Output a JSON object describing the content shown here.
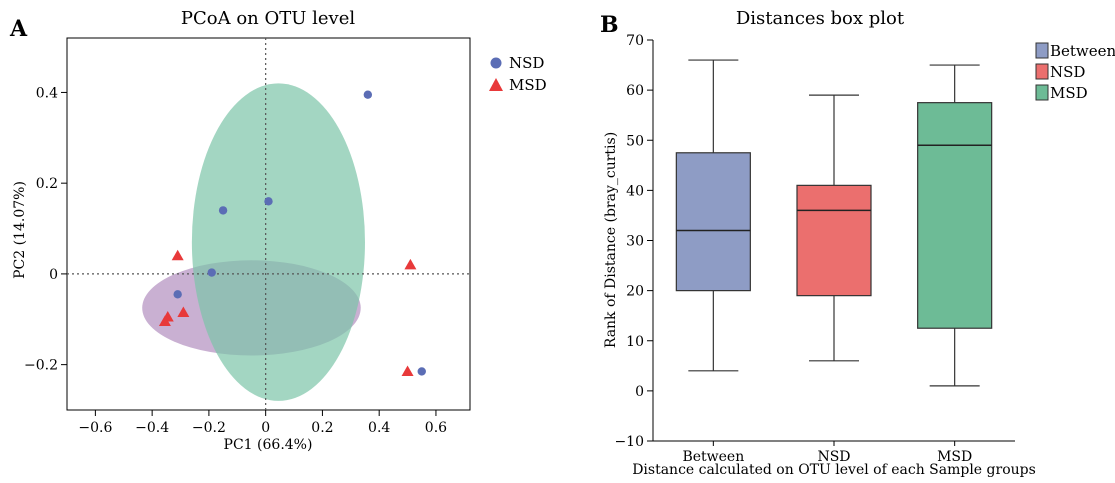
{
  "panels": {
    "a_label": "A",
    "b_label": "B"
  },
  "chart_data": [
    {
      "type": "scatter",
      "title": "PCoA on OTU level",
      "xlabel": "PC1 (66.4%)",
      "ylabel": "PC2 (14.07%)",
      "xlim": [
        -0.7,
        0.72
      ],
      "ylim": [
        -0.3,
        0.52
      ],
      "xticks": [
        -0.6,
        -0.4,
        -0.2,
        0,
        0.2,
        0.4,
        0.6
      ],
      "xtick_labels": [
        "−0.6",
        "−0.4",
        "−0.2",
        "0",
        "0.2",
        "0.4",
        "0.6"
      ],
      "yticks": [
        -0.2,
        0,
        0.2,
        0.4
      ],
      "ytick_labels": [
        "−0.2",
        "0",
        "0.2",
        "0.4"
      ],
      "grid": false,
      "reference_lines": {
        "x": 0,
        "y": 0,
        "style": "dotted"
      },
      "legend_position": "right",
      "series": [
        {
          "name": "NSD",
          "marker": "circle",
          "color": "#5b6db5",
          "points": [
            [
              0.36,
              0.395
            ],
            [
              -0.15,
              0.14
            ],
            [
              0.01,
              0.16
            ],
            [
              -0.19,
              0.003
            ],
            [
              -0.31,
              -0.045
            ],
            [
              0.55,
              -0.215
            ]
          ]
        },
        {
          "name": "MSD",
          "marker": "triangle",
          "color": "#e8393a",
          "points": [
            [
              -0.31,
              0.04
            ],
            [
              -0.345,
              -0.095
            ],
            [
              -0.355,
              -0.105
            ],
            [
              -0.29,
              -0.085
            ],
            [
              0.51,
              0.02
            ],
            [
              0.5,
              -0.215
            ]
          ]
        }
      ],
      "ellipses": [
        {
          "group": "MSD",
          "color": "#9c6fad",
          "opacity": 0.55,
          "cx": -0.05,
          "cy": -0.075,
          "rx": 0.385,
          "ry": 0.105
        },
        {
          "group": "NSD",
          "color": "#7cc4a8",
          "opacity": 0.7,
          "cx": 0.045,
          "cy": 0.07,
          "rx": 0.305,
          "ry": 0.35
        }
      ]
    },
    {
      "type": "box",
      "title": "Distances box plot",
      "xlabel": "Distance calculated on OTU level of each Sample groups",
      "ylabel": "Rank of Distance (bray_curtis)",
      "ylim": [
        -10,
        70
      ],
      "yticks": [
        -10,
        0,
        10,
        20,
        30,
        40,
        50,
        60,
        70
      ],
      "ytick_labels": [
        "−10",
        "0",
        "10",
        "20",
        "30",
        "40",
        "50",
        "60",
        "70"
      ],
      "categories": [
        "Between",
        "NSD",
        "MSD"
      ],
      "legend_position": "right",
      "series": [
        {
          "name": "Between",
          "color": "#8e9cc5",
          "min": 4,
          "q1": 20,
          "median": 32,
          "q3": 47.5,
          "max": 66
        },
        {
          "name": "NSD",
          "color": "#eb6f6e",
          "min": 6,
          "q1": 19,
          "median": 36,
          "q3": 41,
          "max": 59
        },
        {
          "name": "MSD",
          "color": "#6dbb96",
          "min": 1,
          "q1": 12.5,
          "median": 49,
          "q3": 57.5,
          "max": 65
        }
      ]
    }
  ]
}
